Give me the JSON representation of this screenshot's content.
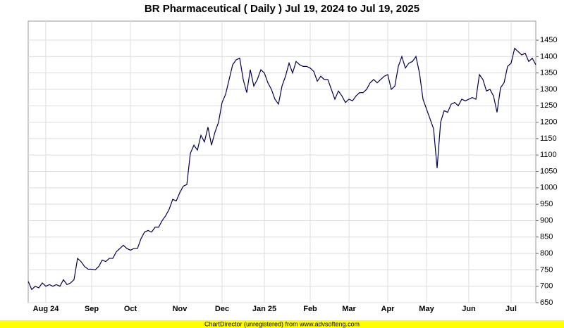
{
  "chart_data": {
    "type": "line",
    "title": "BR Pharmaceutical ( Daily ) Jul 19, 2024 to Jul 19, 2025",
    "footer": "ChartDirector (unregistered) from www.advsofteng.com",
    "categories": [
      null,
      null,
      null,
      null,
      null,
      "Aug 24",
      null,
      null,
      null,
      null,
      null,
      null,
      null,
      null,
      null,
      null,
      null,
      null,
      "Sep",
      null,
      null,
      null,
      null,
      null,
      null,
      null,
      null,
      null,
      null,
      "Oct",
      null,
      null,
      null,
      null,
      null,
      null,
      null,
      null,
      null,
      null,
      null,
      null,
      null,
      "Nov",
      null,
      null,
      null,
      null,
      null,
      null,
      null,
      null,
      null,
      null,
      null,
      "Dec",
      null,
      null,
      null,
      null,
      null,
      null,
      null,
      null,
      null,
      null,
      null,
      "Jan 25",
      null,
      null,
      null,
      null,
      null,
      null,
      null,
      null,
      null,
      null,
      null,
      null,
      "Feb",
      null,
      null,
      null,
      null,
      null,
      null,
      null,
      null,
      null,
      null,
      "Mar",
      null,
      null,
      null,
      null,
      null,
      null,
      null,
      null,
      null,
      null,
      "Apr",
      null,
      null,
      null,
      null,
      null,
      null,
      null,
      null,
      null,
      null,
      "May",
      null,
      null,
      null,
      null,
      null,
      null,
      null,
      null,
      null,
      null,
      null,
      "Jun",
      null,
      null,
      null,
      null,
      null,
      null,
      null,
      null,
      null,
      null,
      null,
      "Jul",
      null,
      null,
      null,
      null,
      null,
      null,
      null
    ],
    "series": [
      {
        "color": "#000050",
        "values": [
          715,
          690,
          700,
          695,
          710,
          700,
          705,
          700,
          705,
          700,
          720,
          705,
          710,
          720,
          785,
          775,
          760,
          752,
          752,
          750,
          760,
          780,
          775,
          785,
          785,
          805,
          815,
          825,
          815,
          810,
          815,
          815,
          845,
          865,
          870,
          865,
          880,
          880,
          900,
          915,
          935,
          965,
          960,
          985,
          1005,
          1010,
          1105,
          1130,
          1115,
          1160,
          1140,
          1185,
          1130,
          1170,
          1200,
          1260,
          1285,
          1330,
          1375,
          1390,
          1395,
          1330,
          1290,
          1360,
          1310,
          1330,
          1360,
          1350,
          1320,
          1300,
          1270,
          1255,
          1310,
          1340,
          1380,
          1350,
          1385,
          1375,
          1370,
          1370,
          1365,
          1355,
          1325,
          1340,
          1330,
          1330,
          1300,
          1270,
          1295,
          1280,
          1260,
          1270,
          1265,
          1280,
          1290,
          1290,
          1300,
          1320,
          1330,
          1320,
          1330,
          1340,
          1345,
          1300,
          1310,
          1370,
          1400,
          1365,
          1380,
          1385,
          1400,
          1350,
          1270,
          1240,
          1210,
          1180,
          1060,
          1200,
          1235,
          1230,
          1255,
          1260,
          1250,
          1270,
          1265,
          1270,
          1275,
          1270,
          1345,
          1330,
          1295,
          1300,
          1280,
          1230,
          1305,
          1320,
          1370,
          1380,
          1425,
          1415,
          1405,
          1410,
          1385,
          1395,
          1375
        ]
      }
    ],
    "ylim": [
      650,
      1508
    ],
    "yticks": [
      650,
      700,
      750,
      800,
      850,
      900,
      950,
      1000,
      1050,
      1100,
      1150,
      1200,
      1250,
      1300,
      1350,
      1400,
      1450
    ],
    "grid": true
  }
}
